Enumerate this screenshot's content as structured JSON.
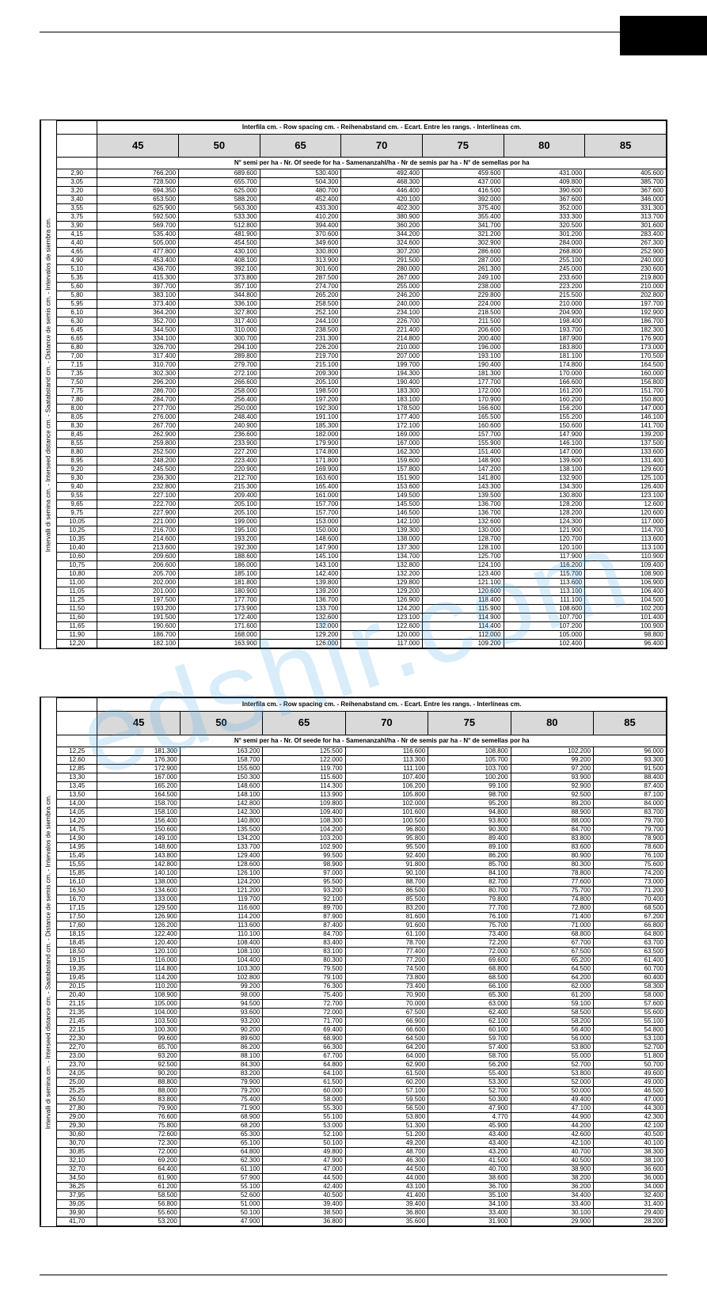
{
  "watermark": "edshir.com",
  "header_row_spacing": "Interfila cm. - Row spacing cm. - Reihenabstand cm. - Ecart. Entre les rangs. - Interlíneas cm.",
  "header_seeds_per_ha": "N° semi per ha - Nr. Of seede for ha - Samenanzahl/ha - Nr de semis par ha - N° de semellas por ha",
  "vertical_label": "Intervalli di semina cm. - Interseed distance cm. - Saatabstand cm. - Distance de semis cm. - Intervalos de siembra cm.",
  "table1": {
    "cols": [
      "45",
      "50",
      "65",
      "70",
      "75",
      "80",
      "85"
    ],
    "rows": [
      [
        "2,90",
        "766.200",
        "689.600",
        "530.400",
        "492.400",
        "459.600",
        "431.000",
        "405.600"
      ],
      [
        "3,05",
        "728.500",
        "655.700",
        "504.300",
        "468.300",
        "437.000",
        "409.800",
        "385.700"
      ],
      [
        "3,20",
        "694.350",
        "625.000",
        "480.700",
        "446.400",
        "416.500",
        "390.600",
        "367.600"
      ],
      [
        "3,40",
        "653.500",
        "588.200",
        "452.400",
        "420.100",
        "392.000",
        "367.600",
        "346.000"
      ],
      [
        "3,55",
        "625.900",
        "563.300",
        "433.300",
        "402.300",
        "375.400",
        "352.000",
        "331.300"
      ],
      [
        "3,75",
        "592.500",
        "533.300",
        "410.200",
        "380.900",
        "355.400",
        "333.300",
        "313.700"
      ],
      [
        "3,90",
        "569.700",
        "512.800",
        "394.400",
        "360.200",
        "341.700",
        "320.500",
        "301.600"
      ],
      [
        "4,15",
        "535.400",
        "481.900",
        "370.600",
        "344.200",
        "321.200",
        "301.200",
        "283.400"
      ],
      [
        "4,40",
        "505.000",
        "454.500",
        "349.600",
        "324.600",
        "302.900",
        "284.000",
        "267.300"
      ],
      [
        "4,65",
        "477.800",
        "430.100",
        "330.800",
        "307.200",
        "286.600",
        "268.800",
        "252.900"
      ],
      [
        "4,90",
        "453.400",
        "408.100",
        "313.900",
        "291.500",
        "287.000",
        "255.100",
        "240.000"
      ],
      [
        "5,10",
        "436.700",
        "392.100",
        "301.600",
        "280.000",
        "261.300",
        "245.000",
        "230.600"
      ],
      [
        "5,35",
        "415.300",
        "373.800",
        "287.500",
        "267.000",
        "249.100",
        "233.600",
        "219.800"
      ],
      [
        "5,60",
        "397.700",
        "357.100",
        "274.700",
        "255.000",
        "238.000",
        "223.200",
        "210.000"
      ],
      [
        "5,80",
        "383.100",
        "344.800",
        "265.200",
        "246.200",
        "229.800",
        "215.500",
        "202.800"
      ],
      [
        "5,95",
        "373.400",
        "336.100",
        "258.500",
        "240.000",
        "224.000",
        "210.000",
        "197.700"
      ],
      [
        "6,10",
        "364.200",
        "327.800",
        "252.100",
        "234.100",
        "218.500",
        "204.900",
        "192.900"
      ],
      [
        "6,30",
        "352.700",
        "317.400",
        "244.100",
        "226.700",
        "211.500",
        "198.400",
        "186.700"
      ],
      [
        "6,45",
        "344.500",
        "310.000",
        "238.500",
        "221.400",
        "206.600",
        "193.700",
        "182.300"
      ],
      [
        "6,65",
        "334.100",
        "300.700",
        "231.300",
        "214.800",
        "200.400",
        "187.900",
        "176.900"
      ],
      [
        "6,80",
        "326.700",
        "294.100",
        "226.200",
        "210.000",
        "196.000",
        "183.800",
        "173.000"
      ],
      [
        "7,00",
        "317.400",
        "289.800",
        "219.700",
        "207.000",
        "193.100",
        "181.100",
        "170.500"
      ],
      [
        "7,15",
        "310.700",
        "279.700",
        "215.100",
        "199.700",
        "190.400",
        "174.800",
        "164.500"
      ],
      [
        "7,35",
        "302.300",
        "272.100",
        "209.300",
        "194.300",
        "181.300",
        "170.000",
        "160.000"
      ],
      [
        "7,50",
        "296.200",
        "266.600",
        "205.100",
        "190.400",
        "177.700",
        "166.600",
        "156.800"
      ],
      [
        "7,75",
        "286.700",
        "258.000",
        "198.500",
        "183.300",
        "172.000",
        "161.200",
        "151.700"
      ],
      [
        "7,80",
        "284.700",
        "256.400",
        "197.200",
        "183.100",
        "170.900",
        "160.200",
        "150.800"
      ],
      [
        "8,00",
        "277.700",
        "250.000",
        "192.300",
        "178.500",
        "166.600",
        "156.200",
        "147.000"
      ],
      [
        "8,05",
        "276.000",
        "248.400",
        "191.100",
        "177.400",
        "165.500",
        "155.200",
        "146.100"
      ],
      [
        "8,30",
        "267.700",
        "240.900",
        "185.300",
        "172.100",
        "160.600",
        "150.600",
        "141.700"
      ],
      [
        "8,45",
        "262.900",
        "236.600",
        "182.000",
        "169.000",
        "157.700",
        "147.900",
        "139.200"
      ],
      [
        "8,55",
        "259.800",
        "233.900",
        "179.900",
        "167.000",
        "155.900",
        "146.100",
        "137.500"
      ],
      [
        "8,80",
        "252.500",
        "227.200",
        "174.800",
        "162.300",
        "151.400",
        "147.000",
        "133.600"
      ],
      [
        "8,95",
        "248.200",
        "223.400",
        "171.800",
        "159.600",
        "148.900",
        "139.600",
        "131.400"
      ],
      [
        "9,20",
        "245.500",
        "220.900",
        "169.900",
        "157.800",
        "147.200",
        "138.100",
        "129.600"
      ],
      [
        "9,30",
        "236.300",
        "212.700",
        "163.600",
        "151.900",
        "141.800",
        "132.900",
        "125.100"
      ],
      [
        "9,40",
        "232.800",
        "215.300",
        "165.400",
        "153.600",
        "143.300",
        "134.300",
        "126.400"
      ],
      [
        "9,55",
        "227.100",
        "209.400",
        "161.000",
        "149.500",
        "139.500",
        "130.800",
        "123.100"
      ],
      [
        "9,65",
        "222.700",
        "205.100",
        "157.700",
        "145.500",
        "136.700",
        "128.200",
        "12.600"
      ],
      [
        "9,75",
        "227.900",
        "205.100",
        "157.700",
        "146.500",
        "136.700",
        "128.200",
        "120.600"
      ],
      [
        "10,05",
        "221.000",
        "199.000",
        "153.000",
        "142.100",
        "132.600",
        "124.300",
        "117.000"
      ],
      [
        "10,25",
        "216.700",
        "195.100",
        "150.000",
        "139.300",
        "130.000",
        "121.900",
        "114.700"
      ],
      [
        "10,35",
        "214.600",
        "193.200",
        "148.600",
        "138.000",
        "128.700",
        "120.700",
        "113.600"
      ],
      [
        "10,40",
        "213.600",
        "192.300",
        "147.900",
        "137.300",
        "128.100",
        "120.100",
        "113.100"
      ],
      [
        "10,60",
        "209.600",
        "188.600",
        "145.100",
        "134.700",
        "125.700",
        "117.900",
        "110.900"
      ],
      [
        "10,75",
        "206.600",
        "186.000",
        "143.100",
        "132.800",
        "124.100",
        "116.200",
        "109.400"
      ],
      [
        "10,80",
        "205.700",
        "185.100",
        "142.400",
        "132.200",
        "123.400",
        "115.700",
        "108.900"
      ],
      [
        "11,00",
        "202.000",
        "181.800",
        "139.800",
        "129.800",
        "121.100",
        "113.600",
        "106.900"
      ],
      [
        "11,05",
        "201.000",
        "180.900",
        "139.200",
        "129.200",
        "120.600",
        "113.100",
        "106.400"
      ],
      [
        "11,25",
        "197.500",
        "177.700",
        "136.700",
        "126.900",
        "118.400",
        "111.100",
        "104.500"
      ],
      [
        "11,50",
        "193.200",
        "173.900",
        "133.700",
        "124.200",
        "115.900",
        "108.600",
        "102.200"
      ],
      [
        "11,60",
        "191.500",
        "172.400",
        "132.600",
        "123.100",
        "114.900",
        "107.700",
        "101.400"
      ],
      [
        "11,65",
        "190.600",
        "171.600",
        "132.000",
        "122.600",
        "114.400",
        "107.200",
        "100.900"
      ],
      [
        "11,90",
        "186.700",
        "168.000",
        "129.200",
        "120.000",
        "112.000",
        "105.000",
        "98.800"
      ],
      [
        "12,20",
        "182.100",
        "163.900",
        "126.000",
        "117.000",
        "109.200",
        "102.400",
        "96.400"
      ]
    ]
  },
  "table2": {
    "cols": [
      "45",
      "50",
      "65",
      "70",
      "75",
      "80",
      "85"
    ],
    "rows": [
      [
        "12,25",
        "181.300",
        "163.200",
        "125.500",
        "116.600",
        "108.800",
        "102.200",
        "96.000"
      ],
      [
        "12,60",
        "176.300",
        "158.700",
        "122.000",
        "113.300",
        "105.700",
        "99.200",
        "93.300"
      ],
      [
        "12,85",
        "172.900",
        "155.600",
        "119.700",
        "111.100",
        "103.700",
        "97.200",
        "91.500"
      ],
      [
        "13,30",
        "167.000",
        "150.300",
        "115.600",
        "107.400",
        "100.200",
        "93.900",
        "88.400"
      ],
      [
        "13,45",
        "165.200",
        "148.600",
        "114.300",
        "106.200",
        "99.100",
        "92.900",
        "87.400"
      ],
      [
        "13,50",
        "164.500",
        "148.100",
        "113.900",
        "105.800",
        "98.700",
        "92.500",
        "87.100"
      ],
      [
        "14,00",
        "158.700",
        "142.800",
        "109.800",
        "102.000",
        "95.200",
        "89.200",
        "84.000"
      ],
      [
        "14,05",
        "158.100",
        "142.300",
        "109.400",
        "101.600",
        "94.800",
        "88.900",
        "83.700"
      ],
      [
        "14,20",
        "156.400",
        "140.800",
        "108.300",
        "100.500",
        "93.800",
        "88.000",
        "79.700"
      ],
      [
        "14,75",
        "150.600",
        "135.500",
        "104.200",
        "96.800",
        "90.300",
        "84.700",
        "79.700"
      ],
      [
        "14,90",
        "149.100",
        "134.200",
        "103.200",
        "95.800",
        "89.400",
        "83.800",
        "78.900"
      ],
      [
        "14,95",
        "148.600",
        "133.700",
        "102.900",
        "95.500",
        "89.100",
        "83.600",
        "78.600"
      ],
      [
        "15,45",
        "143.800",
        "129.400",
        "99.500",
        "92.400",
        "86.200",
        "80.900",
        "76.100"
      ],
      [
        "15,55",
        "142.800",
        "128.600",
        "98.900",
        "91.800",
        "85.700",
        "80.300",
        "75.600"
      ],
      [
        "15,85",
        "140.100",
        "126.100",
        "97.000",
        "90.100",
        "84.100",
        "78.800",
        "74.200"
      ],
      [
        "16,10",
        "138.000",
        "124.200",
        "95.500",
        "88.700",
        "82.700",
        "77.600",
        "73.000"
      ],
      [
        "16,50",
        "134.600",
        "121.200",
        "93.200",
        "86.500",
        "80.700",
        "75.700",
        "71.200"
      ],
      [
        "16,70",
        "133.000",
        "119.700",
        "92.100",
        "85.500",
        "79.800",
        "74.800",
        "70.400"
      ],
      [
        "17,15",
        "129.500",
        "116.600",
        "89.700",
        "83.200",
        "77.700",
        "72.800",
        "68.500"
      ],
      [
        "17,50",
        "126.900",
        "114.200",
        "87.900",
        "81.600",
        "76.100",
        "71.400",
        "67.200"
      ],
      [
        "17,60",
        "126.200",
        "113.600",
        "87.400",
        "91.600",
        "75.700",
        "71.000",
        "66.800"
      ],
      [
        "18,15",
        "122.400",
        "110.100",
        "84.700",
        "61.100",
        "73.400",
        "68.800",
        "64.800"
      ],
      [
        "18,45",
        "120.400",
        "108.400",
        "83.400",
        "78.700",
        "72.200",
        "67.700",
        "63.700"
      ],
      [
        "18,50",
        "120.100",
        "108.100",
        "83.100",
        "77.400",
        "72.000",
        "67.500",
        "63.500"
      ],
      [
        "19,15",
        "116.000",
        "104.400",
        "80.300",
        "77.200",
        "69.600",
        "65.200",
        "61.400"
      ],
      [
        "19,35",
        "114.800",
        "103.300",
        "79.500",
        "74.500",
        "68.800",
        "64.500",
        "60.700"
      ],
      [
        "19,45",
        "114.200",
        "102.800",
        "79.100",
        "73.800",
        "68.500",
        "64.200",
        "60.400"
      ],
      [
        "20,15",
        "110.200",
        "99.200",
        "76.300",
        "73.400",
        "66.100",
        "62.000",
        "58.300"
      ],
      [
        "20,40",
        "108.900",
        "98.000",
        "75.400",
        "70.900",
        "65.300",
        "61.200",
        "58.000"
      ],
      [
        "21,15",
        "105.000",
        "94.500",
        "72.700",
        "70.000",
        "63.000",
        "59.100",
        "57.600"
      ],
      [
        "21,35",
        "104.000",
        "93.600",
        "72.000",
        "67.500",
        "62.400",
        "58.500",
        "55.600"
      ],
      [
        "21,45",
        "103.500",
        "93.200",
        "71.700",
        "66.900",
        "62.100",
        "58.200",
        "55.100"
      ],
      [
        "22,15",
        "100.300",
        "90.200",
        "69.400",
        "66.600",
        "60.100",
        "56.400",
        "54.800"
      ],
      [
        "22,30",
        "99.600",
        "89.600",
        "68.900",
        "64.500",
        "59.700",
        "56.000",
        "53.100"
      ],
      [
        "22,70",
        "65.700",
        "86.200",
        "66.300",
        "64.200",
        "57.400",
        "53.800",
        "52.700"
      ],
      [
        "23,00",
        "93.200",
        "88.100",
        "67.700",
        "64.000",
        "58.700",
        "55.000",
        "51.800"
      ],
      [
        "23,70",
        "92.500",
        "84.300",
        "64.800",
        "62.900",
        "56.200",
        "52.700",
        "50.700"
      ],
      [
        "24,05",
        "90.200",
        "83.200",
        "64.100",
        "61.500",
        "55.400",
        "53.800",
        "49.600"
      ],
      [
        "25,00",
        "88.800",
        "79.900",
        "61.500",
        "60.200",
        "53.300",
        "52.000",
        "49.000"
      ],
      [
        "25,25",
        "88.000",
        "79.200",
        "60.000",
        "57.100",
        "52.700",
        "50.000",
        "46.500"
      ],
      [
        "26,50",
        "83.800",
        "75.400",
        "58.000",
        "59.500",
        "50.300",
        "49.400",
        "47.000"
      ],
      [
        "27,80",
        "79.900",
        "71.900",
        "55.300",
        "56.500",
        "47.900",
        "47.100",
        "44.300"
      ],
      [
        "29,00",
        "76.600",
        "68.900",
        "55.100",
        "53.800",
        "4.770",
        "44.900",
        "42.300"
      ],
      [
        "29,30",
        "75.800",
        "68.200",
        "53.000",
        "51.300",
        "45.900",
        "44.200",
        "42.100"
      ],
      [
        "30,60",
        "72.600",
        "65.300",
        "52.100",
        "51.200",
        "43.400",
        "42.600",
        "40.500"
      ],
      [
        "30,70",
        "72.300",
        "65.100",
        "50.100",
        "49.200",
        "43.400",
        "42.100",
        "40.100"
      ],
      [
        "30,85",
        "72.000",
        "64.800",
        "49.800",
        "48.700",
        "43.200",
        "40.700",
        "38.300"
      ],
      [
        "32,10",
        "69.200",
        "62.300",
        "47.900",
        "46.300",
        "41.500",
        "40.500",
        "38.100"
      ],
      [
        "32,70",
        "64.400",
        "61.100",
        "47.000",
        "44.500",
        "40.700",
        "38.900",
        "36.600"
      ],
      [
        "34,50",
        "61.900",
        "57.900",
        "44.500",
        "44.000",
        "38.600",
        "38.200",
        "36.000"
      ],
      [
        "36,25",
        "61.200",
        "55.100",
        "42.400",
        "43.100",
        "36.700",
        "36.200",
        "34.000"
      ],
      [
        "37,95",
        "58.500",
        "52.600",
        "40.500",
        "41.400",
        "35.100",
        "34.400",
        "32.400"
      ],
      [
        "39,05",
        "56.800",
        "51.000",
        "39.400",
        "39.400",
        "34.100",
        "33.400",
        "31.400"
      ],
      [
        "39,90",
        "55.600",
        "50.100",
        "38.500",
        "36.800",
        "33.400",
        "30.100",
        "29.400"
      ],
      [
        "41,70",
        "53.200",
        "47.900",
        "36.800",
        "35.600",
        "31.900",
        "29.900",
        "28.200"
      ]
    ]
  }
}
